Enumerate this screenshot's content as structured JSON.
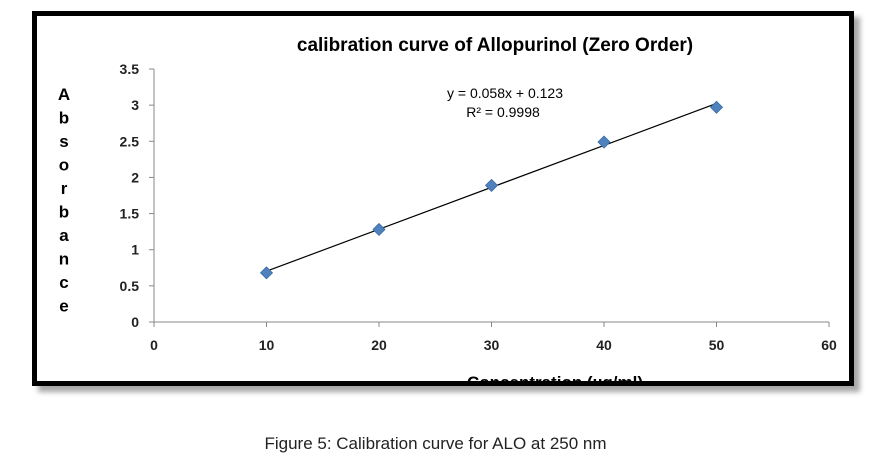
{
  "caption": "Figure 5:  Calibration curve for ALO at 250 nm",
  "chart_data": {
    "type": "scatter",
    "title": "calibration curve of Allopurinol (Zero Order)",
    "xlabel": "Concentration (µg/ml)",
    "ylabel": "Absorbance",
    "xlim": [
      0,
      60
    ],
    "ylim": [
      0,
      3.5
    ],
    "x_ticks": [
      "0",
      "10",
      "20",
      "30",
      "40",
      "50",
      "60"
    ],
    "y_ticks": [
      "0",
      "0.5",
      "1",
      "1.5",
      "2",
      "2.5",
      "3",
      "3.5"
    ],
    "series": [
      {
        "x": [
          10,
          20,
          30,
          40,
          50
        ],
        "y": [
          0.68,
          1.28,
          1.89,
          2.49,
          2.97
        ],
        "marker": "diamond",
        "color": "#4f81bd"
      }
    ],
    "trendline": {
      "type": "linear",
      "slope": 0.058,
      "intercept": 0.123,
      "x_range": [
        10,
        50
      ],
      "equation": "y = 0.058x + 0.123",
      "r_squared": "R² = 0.9998",
      "color": "#000000"
    },
    "grid": false,
    "legend": "none"
  }
}
